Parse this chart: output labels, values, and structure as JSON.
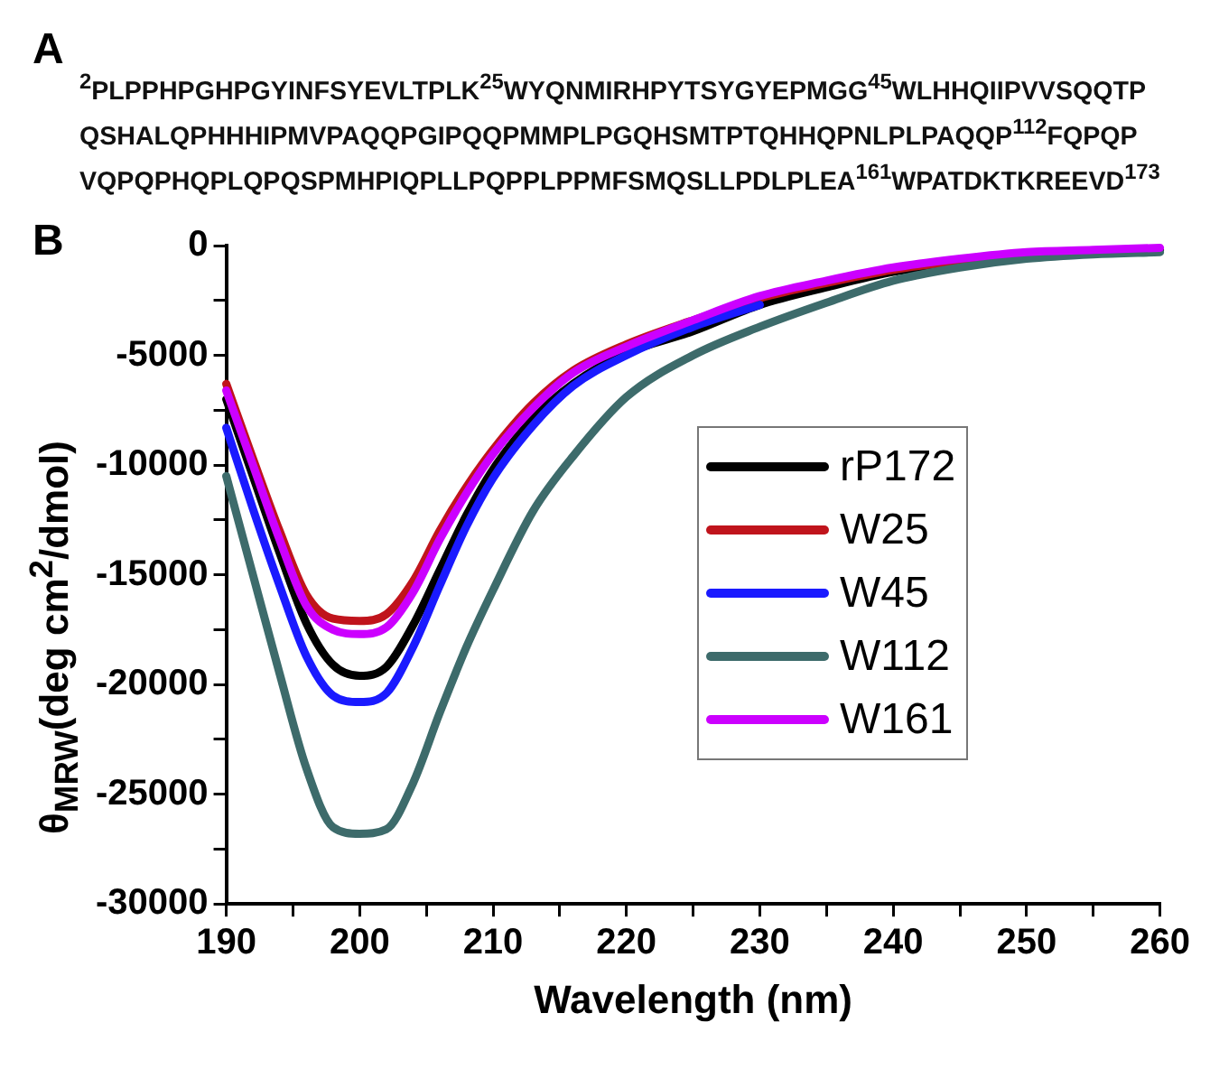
{
  "chart_data": {
    "type": "line",
    "annotations": [
      "A",
      "$^{2}$PLPPHPGHPGYINFSYEVLTPLK$^{25}$WYQNMIRHPYTSYGYEPMGG$^{45}$WLHHQIIPVVSQQTP",
      "QSHALQPHHHIPMVPAQQPGIPQQPMMPLPGQHSMTPTQHHQPNLPLPAQQP$^{112}$FQPQP",
      "VQPQPHQPLQPQSPMHPIQPLLPQPPLPPMFSMQSLLPDLPLEA$^{161}$WPATDKTKREEVD$^{173}$",
      "B"
    ],
    "xlabel": "Wavelength (nm)",
    "ylabel": "θ$_{MRW}$(deg cm$^{2}$/dmol)",
    "x": [
      190,
      192,
      194,
      196,
      198,
      200,
      202,
      204,
      206,
      208,
      210,
      213,
      216,
      220,
      225,
      230,
      235,
      240,
      245,
      250,
      255,
      260
    ],
    "series": [
      {
        "name": "rP172",
        "color": "#000000",
        "values": [
          -7000,
          -10500,
          -14000,
          -17200,
          -19100,
          -19600,
          -19200,
          -17300,
          -14800,
          -12300,
          -10200,
          -7900,
          -6300,
          -4900,
          -3900,
          -2700,
          -1900,
          -1200,
          -800,
          -500,
          -300,
          -200
        ]
      },
      {
        "name": "W25",
        "color": "#c0141c",
        "values": [
          -6300,
          -9700,
          -13000,
          -15900,
          -17000,
          -17100,
          -16800,
          -15300,
          -13000,
          -11000,
          -9300,
          -7200,
          -5700,
          -4500,
          -3400,
          -2400,
          -1700,
          -1100,
          -700,
          -400,
          null,
          null
        ]
      },
      {
        "name": "W45",
        "color": "#1a1aff",
        "values": [
          -8300,
          -12000,
          -15500,
          -18700,
          -20500,
          -20800,
          -20400,
          -18300,
          -15500,
          -12800,
          -10600,
          -8200,
          -6400,
          -5000,
          -3700,
          -2700,
          null,
          null,
          null,
          null,
          null,
          null
        ]
      },
      {
        "name": "W112",
        "color": "#3d6b6b",
        "values": [
          -10500,
          -15000,
          -19500,
          -23800,
          -26500,
          -26800,
          -26600,
          -24500,
          -21300,
          -18300,
          -15700,
          -12100,
          -9600,
          -6900,
          -5000,
          -3700,
          -2600,
          -1600,
          -1000,
          -600,
          -400,
          -300
        ]
      },
      {
        "name": "W161",
        "color": "#cc00ff",
        "values": [
          -6600,
          -10000,
          -13400,
          -16400,
          -17500,
          -17700,
          -17400,
          -15800,
          -13400,
          -11300,
          -9500,
          -7400,
          -5800,
          -4600,
          -3400,
          -2300,
          -1600,
          -1000,
          -600,
          -300,
          -200,
          -100
        ]
      }
    ],
    "xlim": [
      190,
      260
    ],
    "xticks": [
      190,
      {
        "value": 195,
        "label": null
      },
      200,
      {
        "value": 205,
        "label": null
      },
      210,
      {
        "value": 215,
        "label": null
      },
      220,
      {
        "value": 225,
        "label": null
      },
      230,
      {
        "value": 235,
        "label": null
      },
      240,
      {
        "value": 245,
        "label": null
      },
      250,
      {
        "value": 255,
        "label": null
      },
      260
    ],
    "ylim": [
      -30000,
      0
    ],
    "yticks": [
      -30000,
      {
        "value": -27500,
        "label": null
      },
      -25000,
      {
        "value": -22500,
        "label": null
      },
      -20000,
      {
        "value": -17500,
        "label": null
      },
      -15000,
      {
        "value": -12500,
        "label": null
      },
      -10000,
      {
        "value": -7500,
        "label": null
      },
      -5000,
      {
        "value": -2500,
        "label": null
      },
      0
    ],
    "grid": false,
    "legend": "right",
    "marker": "none",
    "line_style": "solid"
  }
}
